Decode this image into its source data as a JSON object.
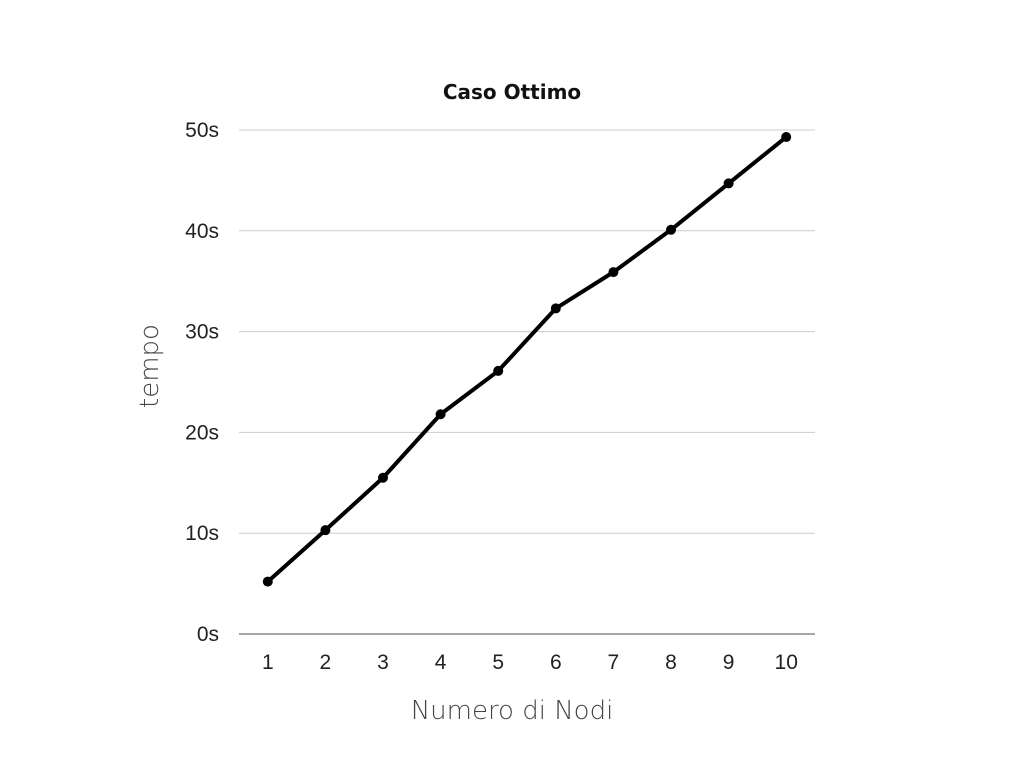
{
  "chart_data": {
    "type": "line",
    "title": "Caso Ottimo",
    "xlabel": "Numero di Nodi",
    "ylabel": "tempo",
    "categories": [
      "1",
      "2",
      "3",
      "4",
      "5",
      "6",
      "7",
      "8",
      "9",
      "10"
    ],
    "series": [
      {
        "values": [
          5.2,
          10.3,
          15.5,
          21.8,
          26.1,
          32.3,
          35.9,
          40.1,
          44.7,
          49.3
        ]
      }
    ],
    "yticks": [
      "0s",
      "10s",
      "20s",
      "30s",
      "40s",
      "50s"
    ],
    "ylim": [
      0,
      50
    ],
    "grid": true,
    "legend": "none",
    "colors": {
      "line": "#000000",
      "grid": "#cccccc",
      "axis": "#888888"
    }
  }
}
